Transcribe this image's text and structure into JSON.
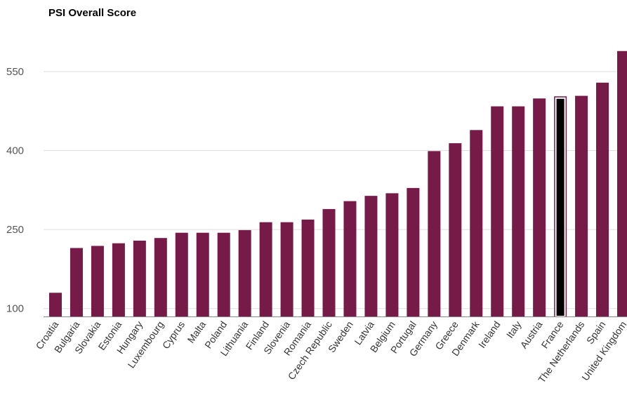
{
  "chart_data": {
    "type": "bar",
    "title": "PSI Overall Score",
    "xlabel": "",
    "ylabel": "",
    "ylim": [
      85,
      590
    ],
    "yticks": [
      100,
      250,
      400,
      550
    ],
    "grid": true,
    "legend": "none",
    "bar_color": "#761a47",
    "highlight_color": "#000000",
    "highlight_outline": "#ffffff",
    "highlight_category": "France",
    "gridline_color": "#dddddd",
    "axis_color": "#888888",
    "categories": [
      "Croatia",
      "Bulgaria",
      "Slovakia",
      "Estonia",
      "Hungary",
      "Luxembourg",
      "Cyprus",
      "Malta",
      "Poland",
      "Lithuania",
      "Finland",
      "Slovenia",
      "Romania",
      "Czech Republic",
      "Sweden",
      "Latvia",
      "Belgium",
      "Portugal",
      "Germany",
      "Greece",
      "Denmark",
      "Ireland",
      "Italy",
      "Austria",
      "France",
      "The Netherlands",
      "Spain",
      "United Kingdom"
    ],
    "values": [
      130,
      215,
      219,
      224,
      229,
      234,
      244,
      244,
      244,
      249,
      264,
      264,
      269,
      289,
      304,
      314,
      319,
      329,
      399,
      414,
      439,
      484,
      484,
      499,
      503,
      504,
      529,
      589
    ]
  }
}
